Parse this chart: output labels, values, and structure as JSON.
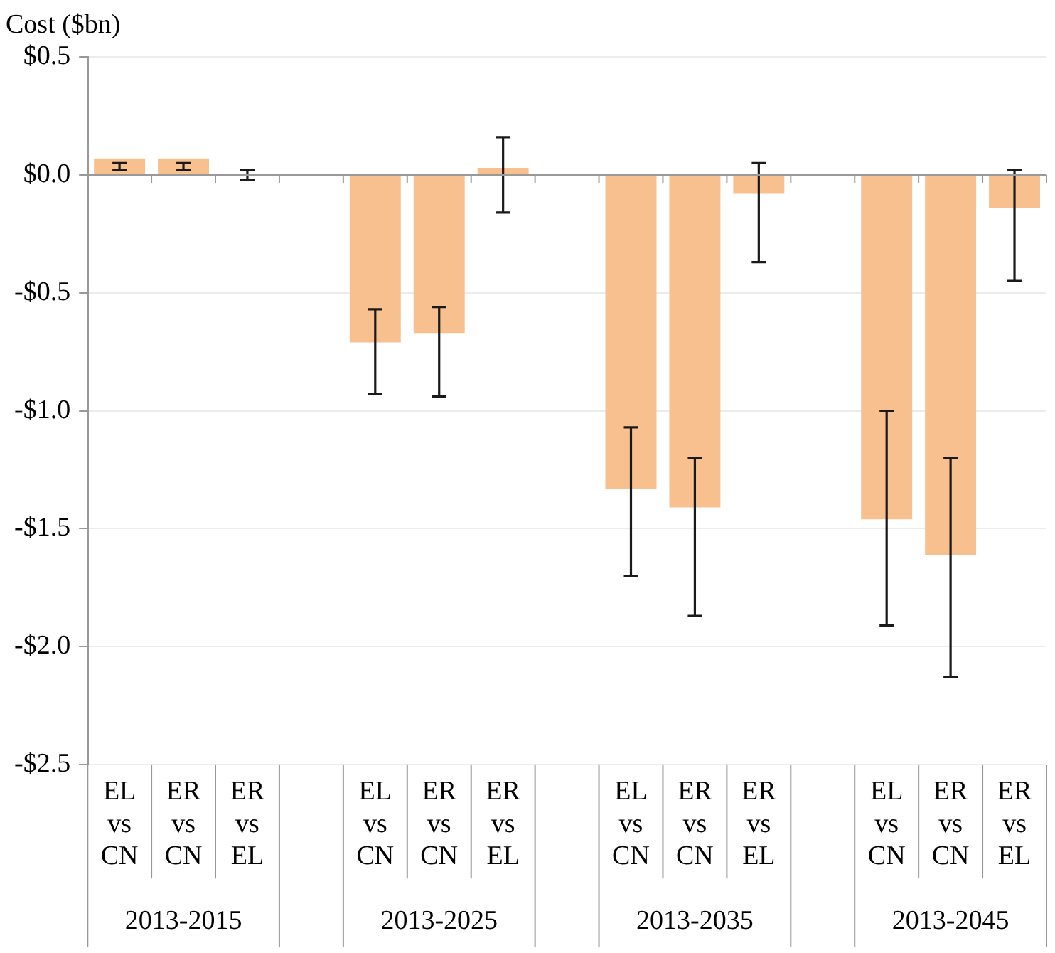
{
  "chart_data": {
    "type": "bar",
    "ylabel": "Cost ($bn)",
    "categories": [
      "EL vs CN",
      "ER vs CN",
      "ER vs EL",
      null,
      "EL vs CN",
      "ER vs CN",
      "ER vs EL",
      null,
      "EL vs CN",
      "ER vs CN",
      "ER vs EL",
      null,
      "EL vs CN",
      "ER vs CN",
      "ER vs EL"
    ],
    "values": [
      0.07,
      0.07,
      0,
      null,
      -0.71,
      -0.67,
      0.03,
      null,
      -1.33,
      -1.41,
      -0.08,
      null,
      -1.46,
      -1.61,
      -0.14
    ],
    "errors": [
      [
        0.02,
        0.05
      ],
      [
        0.02,
        0.05
      ],
      0.02,
      null,
      [
        -0.93,
        -0.57
      ],
      [
        -0.94,
        -0.56
      ],
      [
        -0.16,
        0.16
      ],
      null,
      [
        -1.7,
        -1.07
      ],
      [
        -1.87,
        -1.2
      ],
      [
        -0.37,
        0.05
      ],
      null,
      [
        -1.91,
        -1.0
      ],
      [
        -2.13,
        -1.2
      ],
      [
        -0.45,
        0.02
      ]
    ],
    "color": "#f8c08f",
    "ylim": [
      -2.5,
      0.5
    ],
    "yticks": [
      {
        "value": 0.5,
        "label": "$0.5"
      },
      {
        "value": 0,
        "label": "$0.0"
      },
      {
        "value": -0.5,
        "label": "-$0.5"
      },
      {
        "value": -1,
        "label": "-$1.0"
      },
      {
        "value": -1.5,
        "label": "-$1.5"
      },
      {
        "value": -2,
        "label": "-$2.0"
      },
      {
        "value": -2.5,
        "label": "-$2.5"
      }
    ],
    "grid": "y",
    "annotations": [
      "2013-2015",
      "2013-2025",
      "2013-2035",
      "2013-2045"
    ]
  }
}
